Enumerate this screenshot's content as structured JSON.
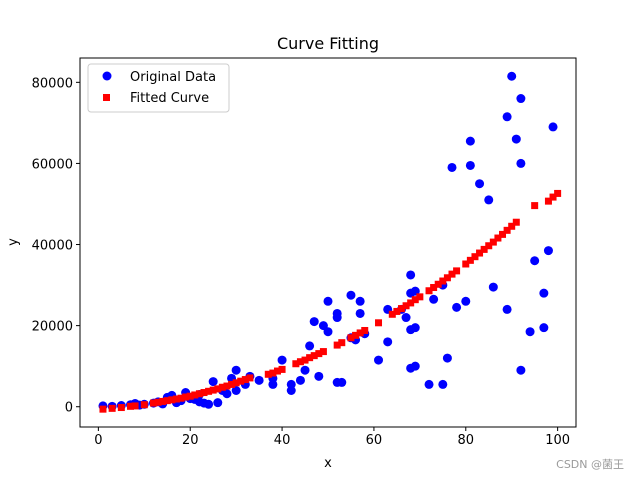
{
  "chart_data": {
    "type": "scatter",
    "title": "Curve Fitting",
    "xlabel": "x",
    "ylabel": "y",
    "xlim": [
      -4,
      104
    ],
    "ylim": [
      -5000,
      86000
    ],
    "xticks": [
      0,
      20,
      40,
      60,
      80,
      100
    ],
    "yticks": [
      0,
      20000,
      40000,
      60000,
      80000
    ],
    "legend_position": "top-left",
    "series": [
      {
        "name": "Original Data",
        "color": "#0000ff",
        "marker": "circle",
        "points": [
          [
            1,
            200
          ],
          [
            3,
            100
          ],
          [
            5,
            300
          ],
          [
            7,
            500
          ],
          [
            8,
            800
          ],
          [
            9,
            400
          ],
          [
            10,
            600
          ],
          [
            12,
            900
          ],
          [
            13,
            1200
          ],
          [
            14,
            700
          ],
          [
            15,
            2300
          ],
          [
            16,
            2800
          ],
          [
            17,
            1000
          ],
          [
            18,
            1500
          ],
          [
            19,
            3500
          ],
          [
            20,
            2000
          ],
          [
            21,
            1800
          ],
          [
            22,
            1200
          ],
          [
            22,
            3000
          ],
          [
            23,
            900
          ],
          [
            24,
            600
          ],
          [
            25,
            6200
          ],
          [
            26,
            1000
          ],
          [
            27,
            4000
          ],
          [
            28,
            3200
          ],
          [
            29,
            7000
          ],
          [
            30,
            4000
          ],
          [
            30,
            9000
          ],
          [
            32,
            5500
          ],
          [
            33,
            7500
          ],
          [
            35,
            6500
          ],
          [
            38,
            5500
          ],
          [
            38,
            7000
          ],
          [
            40,
            11500
          ],
          [
            42,
            4000
          ],
          [
            42,
            5500
          ],
          [
            44,
            6500
          ],
          [
            45,
            9000
          ],
          [
            46,
            15000
          ],
          [
            47,
            21000
          ],
          [
            48,
            7500
          ],
          [
            49,
            20000
          ],
          [
            50,
            18500
          ],
          [
            50,
            26000
          ],
          [
            52,
            23000
          ],
          [
            52,
            22000
          ],
          [
            52,
            6000
          ],
          [
            53,
            6000
          ],
          [
            55,
            27500
          ],
          [
            55,
            17000
          ],
          [
            56,
            16500
          ],
          [
            57,
            26000
          ],
          [
            57,
            23000
          ],
          [
            58,
            18000
          ],
          [
            61,
            11500
          ],
          [
            63,
            16000
          ],
          [
            63,
            24000
          ],
          [
            66,
            24000
          ],
          [
            67,
            22000
          ],
          [
            68,
            32500
          ],
          [
            68,
            28000
          ],
          [
            68,
            19000
          ],
          [
            68,
            9500
          ],
          [
            69,
            10000
          ],
          [
            69,
            28500
          ],
          [
            69,
            19500
          ],
          [
            72,
            5500
          ],
          [
            73,
            26500
          ],
          [
            75,
            30000
          ],
          [
            75,
            5500
          ],
          [
            76,
            12000
          ],
          [
            77,
            59000
          ],
          [
            78,
            24500
          ],
          [
            80,
            26000
          ],
          [
            81,
            65500
          ],
          [
            81,
            59500
          ],
          [
            83,
            55000
          ],
          [
            85,
            51000
          ],
          [
            86,
            29500
          ],
          [
            89,
            24000
          ],
          [
            89,
            71500
          ],
          [
            90,
            81500
          ],
          [
            91,
            66000
          ],
          [
            92,
            76000
          ],
          [
            92,
            60000
          ],
          [
            92,
            9000
          ],
          [
            94,
            18500
          ],
          [
            95,
            36000
          ],
          [
            97,
            19500
          ],
          [
            97,
            28000
          ],
          [
            98,
            38500
          ],
          [
            99,
            69000
          ]
        ]
      },
      {
        "name": "Fitted Curve",
        "color": "#ff0000",
        "marker": "square",
        "points": [
          [
            1,
            -600
          ],
          [
            3,
            -400
          ],
          [
            5,
            -200
          ],
          [
            7,
            100
          ],
          [
            8,
            200
          ],
          [
            10,
            500
          ],
          [
            12,
            900
          ],
          [
            13,
            1100
          ],
          [
            14,
            1300
          ],
          [
            15,
            1500
          ],
          [
            16,
            1700
          ],
          [
            17,
            1900
          ],
          [
            18,
            2100
          ],
          [
            19,
            2400
          ],
          [
            20,
            2600
          ],
          [
            21,
            2900
          ],
          [
            22,
            3200
          ],
          [
            23,
            3500
          ],
          [
            24,
            3800
          ],
          [
            25,
            4100
          ],
          [
            26,
            4400
          ],
          [
            27,
            4800
          ],
          [
            28,
            5100
          ],
          [
            29,
            5500
          ],
          [
            30,
            5900
          ],
          [
            31,
            6300
          ],
          [
            32,
            6700
          ],
          [
            33,
            7100
          ],
          [
            37,
            8000
          ],
          [
            38,
            8300
          ],
          [
            39,
            8800
          ],
          [
            40,
            9200
          ],
          [
            43,
            10600
          ],
          [
            44,
            11100
          ],
          [
            45,
            11500
          ],
          [
            46,
            12100
          ],
          [
            47,
            12600
          ],
          [
            48,
            13100
          ],
          [
            49,
            13600
          ],
          [
            52,
            15200
          ],
          [
            53,
            15800
          ],
          [
            55,
            17000
          ],
          [
            56,
            17600
          ],
          [
            57,
            18200
          ],
          [
            58,
            18800
          ],
          [
            61,
            20700
          ],
          [
            64,
            22800
          ],
          [
            65,
            23500
          ],
          [
            66,
            24200
          ],
          [
            67,
            24900
          ],
          [
            68,
            25600
          ],
          [
            69,
            26400
          ],
          [
            70,
            27100
          ],
          [
            72,
            28600
          ],
          [
            73,
            29400
          ],
          [
            74,
            30200
          ],
          [
            75,
            31000
          ],
          [
            76,
            31800
          ],
          [
            77,
            32700
          ],
          [
            78,
            33500
          ],
          [
            80,
            35200
          ],
          [
            81,
            36100
          ],
          [
            82,
            37000
          ],
          [
            83,
            37900
          ],
          [
            84,
            38800
          ],
          [
            85,
            39700
          ],
          [
            86,
            40600
          ],
          [
            87,
            41600
          ],
          [
            88,
            42500
          ],
          [
            89,
            43500
          ],
          [
            90,
            44500
          ],
          [
            91,
            45500
          ],
          [
            95,
            49600
          ],
          [
            98,
            50700
          ],
          [
            99,
            51700
          ],
          [
            100,
            52600
          ]
        ]
      }
    ]
  },
  "watermark": "CSDN @菌王"
}
